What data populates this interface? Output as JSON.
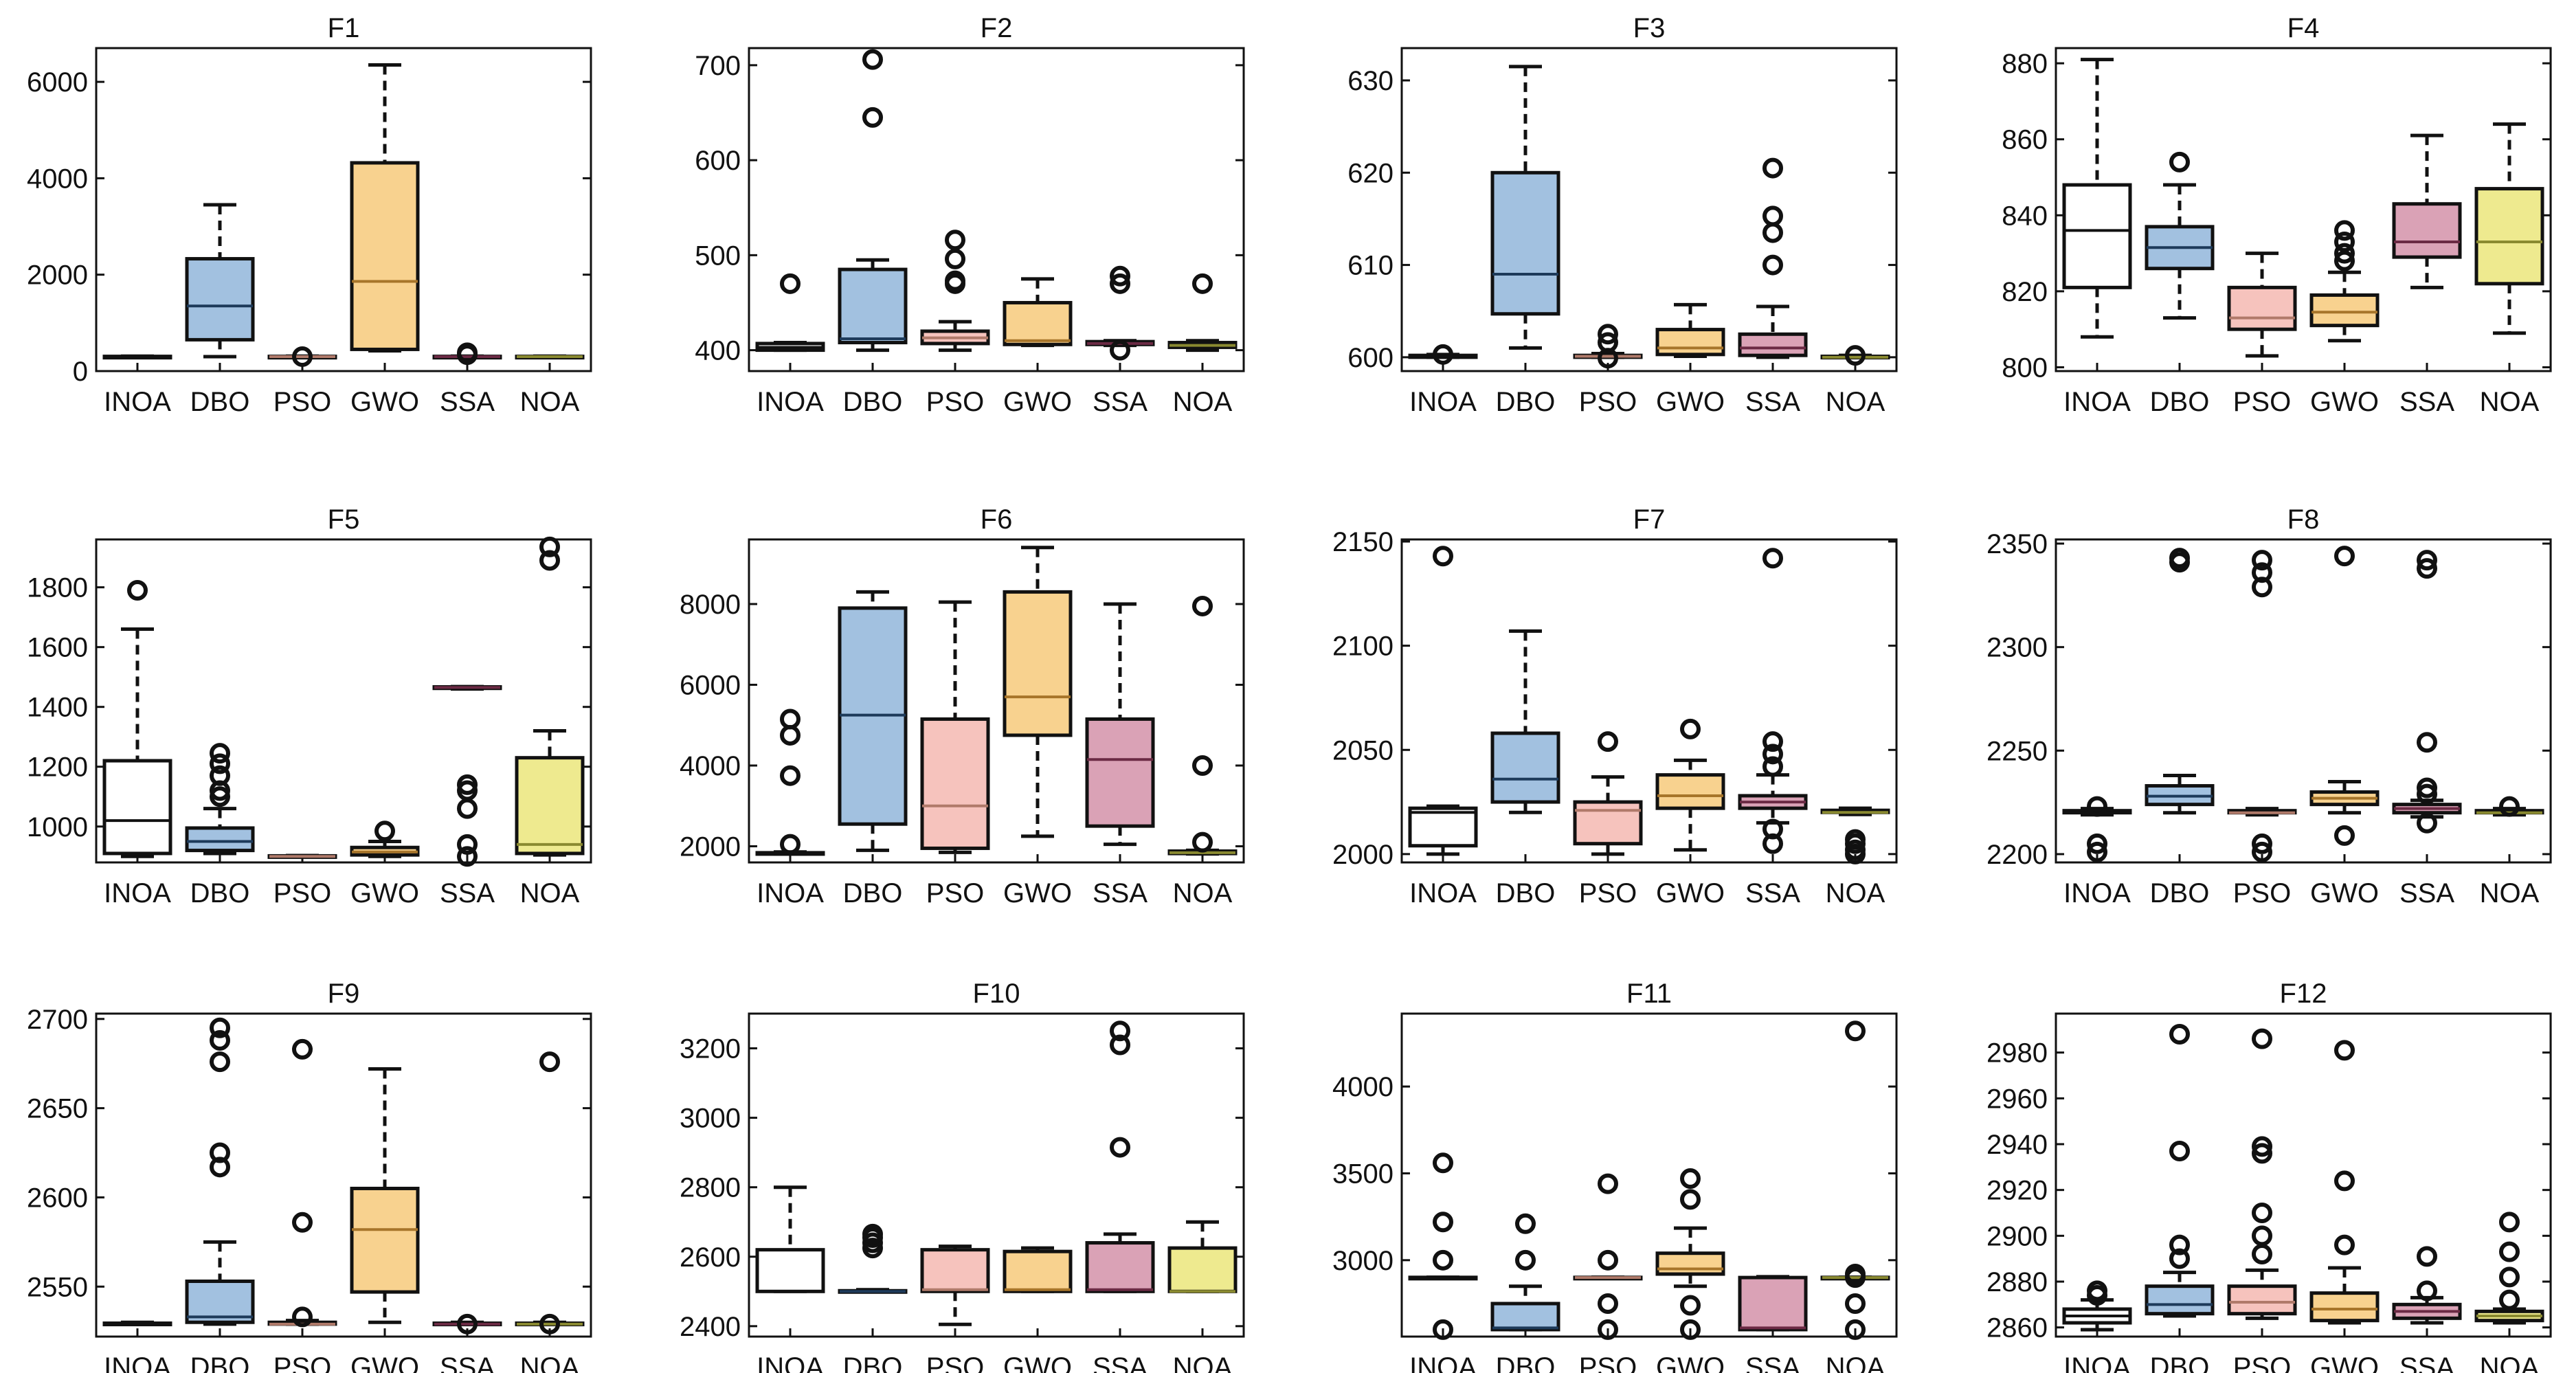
{
  "figure": {
    "categories": [
      "INOA",
      "DBO",
      "PSO",
      "GWO",
      "SSA",
      "NOA"
    ],
    "colors": {
      "INOA": "#ffffff",
      "DBO": "#a2c1e0",
      "PSO": "#f6c3bd",
      "GWO": "#f8d28f",
      "SSA": "#daa2b6",
      "NOA": "#eeea8f"
    },
    "median_colors": {
      "INOA": "#111111",
      "DBO": "#1d3a5a",
      "PSO": "#b07a6a",
      "GWO": "#a7752a",
      "SSA": "#6b2a44",
      "NOA": "#8a8a30"
    }
  },
  "chart_data": [
    {
      "type": "box",
      "title": "F1",
      "ylim": [
        0,
        6700
      ],
      "yticks": [
        0,
        2000,
        4000,
        6000
      ],
      "boxes": {
        "INOA": {
          "min": 295,
          "q1": 295,
          "median": 300,
          "q3": 305,
          "max": 310,
          "outliers": []
        },
        "DBO": {
          "min": 300,
          "q1": 650,
          "median": 1350,
          "q3": 2330,
          "max": 3450,
          "outliers": []
        },
        "PSO": {
          "min": 295,
          "q1": 295,
          "median": 300,
          "q3": 305,
          "max": 310,
          "outliers": [
            300
          ]
        },
        "GWO": {
          "min": 420,
          "q1": 450,
          "median": 1860,
          "q3": 4320,
          "max": 6350,
          "outliers": []
        },
        "SSA": {
          "min": 295,
          "q1": 298,
          "median": 300,
          "q3": 305,
          "max": 310,
          "outliers": [
            380,
            340
          ]
        },
        "NOA": {
          "min": 295,
          "q1": 295,
          "median": 300,
          "q3": 305,
          "max": 310,
          "outliers": []
        }
      }
    },
    {
      "type": "box",
      "title": "F2",
      "ylim": [
        378,
        718
      ],
      "yticks": [
        400,
        500,
        600,
        700
      ],
      "boxes": {
        "INOA": {
          "min": 400,
          "q1": 400,
          "median": 403,
          "q3": 407,
          "max": 408,
          "outliers": [
            470
          ]
        },
        "DBO": {
          "min": 400,
          "q1": 408,
          "median": 412,
          "q3": 485,
          "max": 495,
          "outliers": [
            645,
            706
          ]
        },
        "PSO": {
          "min": 400,
          "q1": 407,
          "median": 413,
          "q3": 420,
          "max": 430,
          "outliers": [
            470,
            473,
            496,
            516
          ]
        },
        "GWO": {
          "min": 405,
          "q1": 406,
          "median": 410,
          "q3": 450,
          "max": 475,
          "outliers": []
        },
        "SSA": {
          "min": 405,
          "q1": 406,
          "median": 407,
          "q3": 409,
          "max": 410,
          "outliers": [
            400,
            470,
            478
          ]
        },
        "NOA": {
          "min": 400,
          "q1": 403,
          "median": 405,
          "q3": 408,
          "max": 410,
          "outliers": [
            470
          ]
        }
      }
    },
    {
      "type": "box",
      "title": "F3",
      "ylim": [
        598.5,
        633.5
      ],
      "yticks": [
        600,
        610,
        620,
        630
      ],
      "boxes": {
        "INOA": {
          "min": 600,
          "q1": 600,
          "median": 600,
          "q3": 600.2,
          "max": 600.3,
          "outliers": [
            600.3
          ]
        },
        "DBO": {
          "min": 601,
          "q1": 604.7,
          "median": 609,
          "q3": 620,
          "max": 631.5,
          "outliers": []
        },
        "PSO": {
          "min": 600,
          "q1": 600,
          "median": 600.1,
          "q3": 600.2,
          "max": 600.4,
          "outliers": [
            602.5,
            601.6,
            599.9
          ]
        },
        "GWO": {
          "min": 600.1,
          "q1": 600.3,
          "median": 601,
          "q3": 603,
          "max": 605.7,
          "outliers": []
        },
        "SSA": {
          "min": 600,
          "q1": 600.2,
          "median": 601,
          "q3": 602.5,
          "max": 605.5,
          "outliers": [
            610,
            613.5,
            615.3,
            620.5
          ]
        },
        "NOA": {
          "min": 600,
          "q1": 600,
          "median": 600,
          "q3": 600.1,
          "max": 600.2,
          "outliers": [
            600.2
          ]
        }
      }
    },
    {
      "type": "box",
      "title": "F4",
      "ylim": [
        799,
        884
      ],
      "yticks": [
        800,
        820,
        840,
        860,
        880
      ],
      "boxes": {
        "INOA": {
          "min": 808,
          "q1": 821,
          "median": 836,
          "q3": 848,
          "max": 881,
          "outliers": []
        },
        "DBO": {
          "min": 813,
          "q1": 826,
          "median": 831.5,
          "q3": 837,
          "max": 848,
          "outliers": [
            854
          ]
        },
        "PSO": {
          "min": 803,
          "q1": 810,
          "median": 813,
          "q3": 821,
          "max": 830,
          "outliers": []
        },
        "GWO": {
          "min": 807,
          "q1": 811,
          "median": 814.5,
          "q3": 819,
          "max": 825,
          "outliers": [
            828,
            830,
            833,
            836
          ]
        },
        "SSA": {
          "min": 821,
          "q1": 829,
          "median": 833,
          "q3": 843,
          "max": 861,
          "outliers": []
        },
        "NOA": {
          "min": 809,
          "q1": 822,
          "median": 833,
          "q3": 847,
          "max": 864,
          "outliers": []
        }
      }
    },
    {
      "type": "box",
      "title": "F5",
      "ylim": [
        880,
        1960
      ],
      "yticks": [
        1000,
        1200,
        1400,
        1600,
        1800
      ],
      "boxes": {
        "INOA": {
          "min": 900,
          "q1": 910,
          "median": 1020,
          "q3": 1220,
          "max": 1660,
          "outliers": [
            1790
          ]
        },
        "DBO": {
          "min": 910,
          "q1": 920,
          "median": 950,
          "q3": 995,
          "max": 1060,
          "outliers": [
            1100,
            1120,
            1170,
            1210,
            1245
          ]
        },
        "PSO": {
          "min": 900,
          "q1": 900,
          "median": 900,
          "q3": 902,
          "max": 903,
          "outliers": []
        },
        "GWO": {
          "min": 900,
          "q1": 905,
          "median": 915,
          "q3": 930,
          "max": 950,
          "outliers": [
            985
          ]
        },
        "SSA": {
          "min": 1460,
          "q1": 1462,
          "median": 1465,
          "q3": 1467,
          "max": 1468,
          "outliers": [
            900,
            940,
            1060,
            1120,
            1140
          ]
        },
        "NOA": {
          "min": 905,
          "q1": 910,
          "median": 940,
          "q3": 1230,
          "max": 1320,
          "outliers": [
            1890,
            1935
          ]
        }
      }
    },
    {
      "type": "box",
      "title": "F6",
      "ylim": [
        1600,
        9600
      ],
      "yticks": [
        2000,
        4000,
        6000,
        8000
      ],
      "boxes": {
        "INOA": {
          "min": 1810,
          "q1": 1810,
          "median": 1820,
          "q3": 1840,
          "max": 1860,
          "outliers": [
            2050,
            3750,
            4750,
            5150
          ]
        },
        "DBO": {
          "min": 1900,
          "q1": 2550,
          "median": 5250,
          "q3": 7900,
          "max": 8300,
          "outliers": []
        },
        "PSO": {
          "min": 1850,
          "q1": 1950,
          "median": 3000,
          "q3": 5150,
          "max": 8050,
          "outliers": []
        },
        "GWO": {
          "min": 2250,
          "q1": 4750,
          "median": 5700,
          "q3": 8300,
          "max": 9400,
          "outliers": []
        },
        "SSA": {
          "min": 2050,
          "q1": 2500,
          "median": 4150,
          "q3": 5150,
          "max": 8000,
          "outliers": []
        },
        "NOA": {
          "min": 1810,
          "q1": 1820,
          "median": 1840,
          "q3": 1880,
          "max": 1900,
          "outliers": [
            2100,
            4000,
            7950
          ]
        }
      }
    },
    {
      "type": "box",
      "title": "F7",
      "ylim": [
        1996,
        2151
      ],
      "yticks": [
        2000,
        2050,
        2100,
        2150
      ],
      "boxes": {
        "INOA": {
          "min": 2000,
          "q1": 2004,
          "median": 2020,
          "q3": 2022,
          "max": 2023,
          "outliers": [
            2143
          ]
        },
        "DBO": {
          "min": 2020,
          "q1": 2025,
          "median": 2036,
          "q3": 2058,
          "max": 2107,
          "outliers": []
        },
        "PSO": {
          "min": 2000,
          "q1": 2005,
          "median": 2021,
          "q3": 2025,
          "max": 2037,
          "outliers": [
            2054
          ]
        },
        "GWO": {
          "min": 2002,
          "q1": 2022,
          "median": 2028,
          "q3": 2038,
          "max": 2045,
          "outliers": [
            2060
          ]
        },
        "SSA": {
          "min": 2015,
          "q1": 2022,
          "median": 2025,
          "q3": 2028,
          "max": 2038,
          "outliers": [
            2005,
            2012,
            2042,
            2048,
            2054,
            2142
          ]
        },
        "NOA": {
          "min": 2019,
          "q1": 2020,
          "median": 2020,
          "q3": 2021,
          "max": 2022,
          "outliers": [
            2000,
            2002,
            2005,
            2007
          ]
        }
      }
    },
    {
      "type": "box",
      "title": "F8",
      "ylim": [
        2196,
        2352
      ],
      "yticks": [
        2200,
        2250,
        2300,
        2350
      ],
      "boxes": {
        "INOA": {
          "min": 2219,
          "q1": 2220,
          "median": 2220,
          "q3": 2221,
          "max": 2222,
          "outliers": [
            2201,
            2205,
            2223
          ]
        },
        "DBO": {
          "min": 2220,
          "q1": 2224,
          "median": 2228,
          "q3": 2233,
          "max": 2238,
          "outliers": [
            2341,
            2343
          ]
        },
        "PSO": {
          "min": 2219,
          "q1": 2220,
          "median": 2220,
          "q3": 2221,
          "max": 2222,
          "outliers": [
            2201,
            2205,
            2329,
            2336,
            2342
          ]
        },
        "GWO": {
          "min": 2220,
          "q1": 2224,
          "median": 2227,
          "q3": 2230,
          "max": 2235,
          "outliers": [
            2209,
            2344
          ]
        },
        "SSA": {
          "min": 2218,
          "q1": 2220,
          "median": 2222,
          "q3": 2224,
          "max": 2226,
          "outliers": [
            2215,
            2229,
            2232,
            2254,
            2338,
            2342
          ]
        },
        "NOA": {
          "min": 2219,
          "q1": 2220,
          "median": 2220,
          "q3": 2221,
          "max": 2222,
          "outliers": [
            2223
          ]
        }
      }
    },
    {
      "type": "box",
      "title": "F9",
      "ylim": [
        2522,
        2703
      ],
      "yticks": [
        2550,
        2600,
        2650,
        2700
      ],
      "boxes": {
        "INOA": {
          "min": 2529,
          "q1": 2529,
          "median": 2529,
          "q3": 2529.5,
          "max": 2530,
          "outliers": []
        },
        "DBO": {
          "min": 2529,
          "q1": 2530,
          "median": 2533,
          "q3": 2553,
          "max": 2575,
          "outliers": [
            2617,
            2625,
            2676,
            2688,
            2695
          ]
        },
        "PSO": {
          "min": 2529,
          "q1": 2529,
          "median": 2529,
          "q3": 2530,
          "max": 2531,
          "outliers": [
            2533,
            2586,
            2683
          ]
        },
        "GWO": {
          "min": 2530,
          "q1": 2547,
          "median": 2582,
          "q3": 2605,
          "max": 2672,
          "outliers": []
        },
        "SSA": {
          "min": 2529,
          "q1": 2529,
          "median": 2529,
          "q3": 2529.5,
          "max": 2530,
          "outliers": [
            2529
          ]
        },
        "NOA": {
          "min": 2529,
          "q1": 2529,
          "median": 2529,
          "q3": 2529.5,
          "max": 2530,
          "outliers": [
            2529,
            2676
          ]
        }
      }
    },
    {
      "type": "box",
      "title": "F10",
      "ylim": [
        2370,
        3300
      ],
      "yticks": [
        2400,
        2600,
        2800,
        3000,
        3200
      ],
      "boxes": {
        "INOA": {
          "min": 2500,
          "q1": 2500,
          "median": 2500,
          "q3": 2620,
          "max": 2800,
          "outliers": []
        },
        "DBO": {
          "min": 2500,
          "q1": 2500,
          "median": 2500,
          "q3": 2502,
          "max": 2505,
          "outliers": [
            2625,
            2640,
            2655,
            2665
          ]
        },
        "PSO": {
          "min": 2405,
          "q1": 2500,
          "median": 2505,
          "q3": 2620,
          "max": 2630,
          "outliers": []
        },
        "GWO": {
          "min": 2500,
          "q1": 2500,
          "median": 2505,
          "q3": 2615,
          "max": 2625,
          "outliers": []
        },
        "SSA": {
          "min": 2500,
          "q1": 2500,
          "median": 2505,
          "q3": 2640,
          "max": 2665,
          "outliers": [
            2915,
            3210,
            3250
          ]
        },
        "NOA": {
          "min": 2500,
          "q1": 2500,
          "median": 2500,
          "q3": 2625,
          "max": 2700,
          "outliers": []
        }
      }
    },
    {
      "type": "box",
      "title": "F11",
      "ylim": [
        2560,
        4420
      ],
      "yticks": [
        3000,
        3500,
        4000
      ],
      "boxes": {
        "INOA": {
          "min": 2898,
          "q1": 2899,
          "median": 2900,
          "q3": 2901,
          "max": 2902,
          "outliers": [
            2600,
            3000,
            3220,
            3560
          ]
        },
        "DBO": {
          "min": 2600,
          "q1": 2600,
          "median": 2610,
          "q3": 2750,
          "max": 2850,
          "outliers": [
            3000,
            3210
          ]
        },
        "PSO": {
          "min": 2898,
          "q1": 2899,
          "median": 2900,
          "q3": 2901,
          "max": 2902,
          "outliers": [
            2600,
            2750,
            3000,
            3440
          ]
        },
        "GWO": {
          "min": 2850,
          "q1": 2920,
          "median": 2950,
          "q3": 3040,
          "max": 3185,
          "outliers": [
            2600,
            2740,
            3350,
            3470
          ]
        },
        "SSA": {
          "min": 2600,
          "q1": 2600,
          "median": 2610,
          "q3": 2900,
          "max": 2905,
          "outliers": []
        },
        "NOA": {
          "min": 2898,
          "q1": 2899,
          "median": 2900,
          "q3": 2901,
          "max": 2902,
          "outliers": [
            2600,
            2750,
            2900,
            2920,
            4320
          ]
        }
      }
    },
    {
      "type": "box",
      "title": "F12",
      "ylim": [
        2856,
        2997
      ],
      "yticks": [
        2860,
        2880,
        2900,
        2920,
        2940,
        2960,
        2980
      ],
      "boxes": {
        "INOA": {
          "min": 2859,
          "q1": 2862,
          "median": 2865,
          "q3": 2868,
          "max": 2872,
          "outliers": [
            2874,
            2876
          ]
        },
        "DBO": {
          "min": 2865,
          "q1": 2866,
          "median": 2870,
          "q3": 2878,
          "max": 2884,
          "outliers": [
            2890,
            2896,
            2937,
            2988
          ]
        },
        "PSO": {
          "min": 2864,
          "q1": 2866,
          "median": 2871,
          "q3": 2878,
          "max": 2885,
          "outliers": [
            2892,
            2900,
            2910,
            2936,
            2939,
            2986
          ]
        },
        "GWO": {
          "min": 2862,
          "q1": 2863,
          "median": 2868,
          "q3": 2875,
          "max": 2886,
          "outliers": [
            2896,
            2924,
            2981
          ]
        },
        "SSA": {
          "min": 2862,
          "q1": 2864,
          "median": 2867,
          "q3": 2870,
          "max": 2873,
          "outliers": [
            2876,
            2891
          ]
        },
        "NOA": {
          "min": 2862,
          "q1": 2863,
          "median": 2865,
          "q3": 2867,
          "max": 2868,
          "outliers": [
            2872,
            2882,
            2893,
            2906
          ]
        }
      }
    }
  ]
}
